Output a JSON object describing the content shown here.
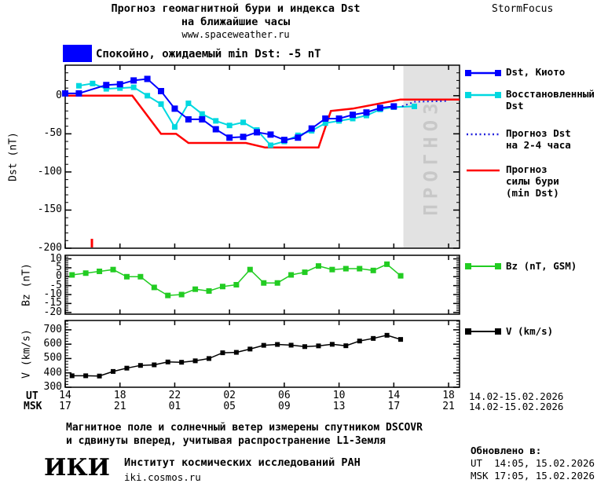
{
  "title": {
    "line1": "Прогноз геомагнитной бури и индекса Dst",
    "line2": "на ближайшие часы",
    "line3": "www.spaceweather.ru"
  },
  "brand": "StormFocus",
  "status": {
    "label": "Спокойно, ожидаемый min Dst: -5 nT",
    "color": "#0000ff"
  },
  "forecast_overlay": {
    "label": "ПРОГНОЗ"
  },
  "legend_main": [
    {
      "lines": [
        "Dst, Киото"
      ],
      "color": "#0000ff",
      "style": "marker-line"
    },
    {
      "lines": [
        "Восстановленный",
        "Dst"
      ],
      "color": "#00d8e0",
      "style": "marker-line"
    },
    {
      "lines": [
        "Прогноз Dst",
        "на 2-4 часа"
      ],
      "color": "#2222dd",
      "style": "dotted"
    },
    {
      "lines": [
        "Прогноз",
        "силы бури",
        "(min Dst)"
      ],
      "color": "#ff0000",
      "style": "solid"
    }
  ],
  "xaxis": {
    "ut_label": "UT",
    "msk_label": "MSK",
    "ut_ticks": [
      "14",
      "18",
      "22",
      "02",
      "06",
      "10",
      "14",
      "18"
    ],
    "msk_ticks": [
      "17",
      "21",
      "01",
      "05",
      "09",
      "13",
      "17",
      "21"
    ],
    "ut_date": "14.02-15.02.2026",
    "msk_date": "14.02-15.02.2026"
  },
  "chart_data": [
    {
      "type": "line",
      "name": "dst",
      "ylabel": "Dst (nT)",
      "ylim": [
        -200,
        40
      ],
      "yticks": [
        0,
        -50,
        -100,
        -150,
        -200
      ],
      "xlim": [
        0,
        28.8
      ],
      "xticks_t": [
        0,
        4,
        8,
        12,
        16,
        20,
        24,
        28
      ],
      "forecast_region": {
        "t0": 24.7,
        "t1": 28.8
      },
      "event_tick": {
        "t": 1.95,
        "color": "#ff0000"
      },
      "series": [
        {
          "id": "storm-forecast",
          "name": "Прогноз силы бури (min Dst)",
          "color": "#ff0000",
          "marker": "none",
          "lw": 2.5,
          "points": [
            [
              0,
              0
            ],
            [
              4.9,
              0
            ],
            [
              7,
              -50
            ],
            [
              8.1,
              -50
            ],
            [
              9,
              -62
            ],
            [
              13.2,
              -62
            ],
            [
              14.6,
              -68
            ],
            [
              18.5,
              -68
            ],
            [
              19.4,
              -20
            ],
            [
              21,
              -17
            ],
            [
              24.5,
              -5
            ],
            [
              28.8,
              -5
            ]
          ]
        },
        {
          "id": "dst-restored",
          "name": "Восстановленный Dst",
          "color": "#00d8e0",
          "marker": "square",
          "ms": 7,
          "lw": 2,
          "points": [
            [
              1,
              13
            ],
            [
              2,
              16
            ],
            [
              3,
              9
            ],
            [
              4,
              10
            ],
            [
              5,
              11
            ],
            [
              6,
              0
            ],
            [
              7,
              -11
            ],
            [
              8,
              -41
            ],
            [
              9,
              -10
            ],
            [
              10,
              -24
            ],
            [
              11,
              -33
            ],
            [
              12,
              -39
            ],
            [
              13,
              -35
            ],
            [
              14,
              -45
            ],
            [
              15,
              -65
            ],
            [
              16,
              -60
            ],
            [
              17,
              -52
            ],
            [
              18,
              -46
            ],
            [
              19,
              -36
            ],
            [
              20,
              -33
            ],
            [
              21,
              -30
            ],
            [
              22,
              -26
            ],
            [
              23,
              -18
            ],
            [
              24,
              -15
            ],
            [
              25.5,
              -14
            ]
          ]
        },
        {
          "id": "dst-kyoto",
          "name": "Dst, Киото",
          "color": "#0000ff",
          "marker": "square",
          "ms": 8,
          "lw": 2,
          "points": [
            [
              0,
              3
            ],
            [
              1,
              3
            ],
            [
              3,
              14
            ],
            [
              4,
              15
            ],
            [
              5,
              20
            ],
            [
              6,
              22
            ],
            [
              7,
              6
            ],
            [
              8,
              -17
            ],
            [
              9,
              -31
            ],
            [
              10,
              -31
            ],
            [
              11,
              -44
            ],
            [
              12,
              -55
            ],
            [
              13,
              -54
            ],
            [
              14,
              -48
            ],
            [
              15,
              -51
            ],
            [
              16,
              -58
            ],
            [
              17,
              -55
            ],
            [
              18,
              -43
            ],
            [
              19,
              -30
            ],
            [
              20,
              -30
            ],
            [
              21,
              -25
            ],
            [
              22,
              -22
            ],
            [
              23,
              -16
            ],
            [
              24,
              -14
            ]
          ]
        },
        {
          "id": "dst-forecast",
          "name": "Прогноз Dst на 2-4 часа",
          "color": "#2222dd",
          "marker": "none",
          "style": "dotted",
          "lw": 2,
          "points": [
            [
              24.6,
              -14
            ],
            [
              25.5,
              -8
            ],
            [
              28,
              -7
            ]
          ]
        }
      ]
    },
    {
      "type": "line",
      "name": "bz",
      "ylabel": "Bz (nT)",
      "ylim": [
        -21,
        12
      ],
      "yticks": [
        10,
        5,
        0,
        -5,
        -10,
        -15,
        -20
      ],
      "xlim": [
        0,
        28.8
      ],
      "xticks_t": [
        0,
        4,
        8,
        12,
        16,
        20,
        24,
        28
      ],
      "series": [
        {
          "id": "bz",
          "name": "Bz (nT, GSM)",
          "color": "#22cc22",
          "marker": "square",
          "ms": 7,
          "lw": 1.5,
          "points": [
            [
              0.5,
              1
            ],
            [
              1.5,
              2
            ],
            [
              2.5,
              3
            ],
            [
              3.5,
              4
            ],
            [
              4.5,
              0
            ],
            [
              5.5,
              0
            ],
            [
              6.5,
              -6
            ],
            [
              7.5,
              -10.5
            ],
            [
              8.5,
              -10
            ],
            [
              9.5,
              -7
            ],
            [
              10.5,
              -8
            ],
            [
              11.5,
              -5.5
            ],
            [
              12.5,
              -4.5
            ],
            [
              13.5,
              4
            ],
            [
              14.5,
              -3.5
            ],
            [
              15.5,
              -3.5
            ],
            [
              16.5,
              1
            ],
            [
              17.5,
              2.5
            ],
            [
              18.5,
              6
            ],
            [
              19.5,
              4
            ],
            [
              20.5,
              4.5
            ],
            [
              21.5,
              4.5
            ],
            [
              22.5,
              3.5
            ],
            [
              23.5,
              7
            ],
            [
              24.5,
              0.5
            ]
          ]
        }
      ]
    },
    {
      "type": "line",
      "name": "v",
      "ylabel": "V (km/s)",
      "ylim": [
        300,
        765
      ],
      "yticks": [
        700,
        600,
        500,
        400,
        300
      ],
      "xlim": [
        0,
        28.8
      ],
      "xticks_t": [
        0,
        4,
        8,
        12,
        16,
        20,
        24,
        28
      ],
      "series": [
        {
          "id": "v",
          "name": "V (km/s)",
          "color": "#000000",
          "marker": "square",
          "ms": 6,
          "lw": 1.5,
          "points": [
            [
              0.5,
              380
            ],
            [
              1.5,
              380
            ],
            [
              2.5,
              378
            ],
            [
              3.5,
              410
            ],
            [
              4.5,
              433
            ],
            [
              5.5,
              452
            ],
            [
              6.5,
              456
            ],
            [
              7.5,
              476
            ],
            [
              8.5,
              474
            ],
            [
              9.5,
              484
            ],
            [
              10.5,
              500
            ],
            [
              11.5,
              540
            ],
            [
              12.5,
              543
            ],
            [
              13.5,
              566
            ],
            [
              14.5,
              592
            ],
            [
              15.5,
              598
            ],
            [
              16.5,
              593
            ],
            [
              17.5,
              583
            ],
            [
              18.5,
              588
            ],
            [
              19.5,
              599
            ],
            [
              20.5,
              589
            ],
            [
              21.5,
              622
            ],
            [
              22.5,
              640
            ],
            [
              23.5,
              662
            ],
            [
              24.5,
              633
            ]
          ]
        }
      ]
    }
  ],
  "footer": {
    "line1": "Магнитное поле и солнечный ветер измерены спутником DSCOVR",
    "line2": "и сдвинуты вперед, учитывая распространение L1-Земля",
    "logo": "ИКИ",
    "institute": "Институт космических исследований РАН",
    "site": "iki.cosmos.ru"
  },
  "updated": {
    "heading": "Обновлено в:",
    "ut": "UT  14:05, 15.02.2026",
    "msk": "MSK 17:05, 15.02.2026"
  }
}
